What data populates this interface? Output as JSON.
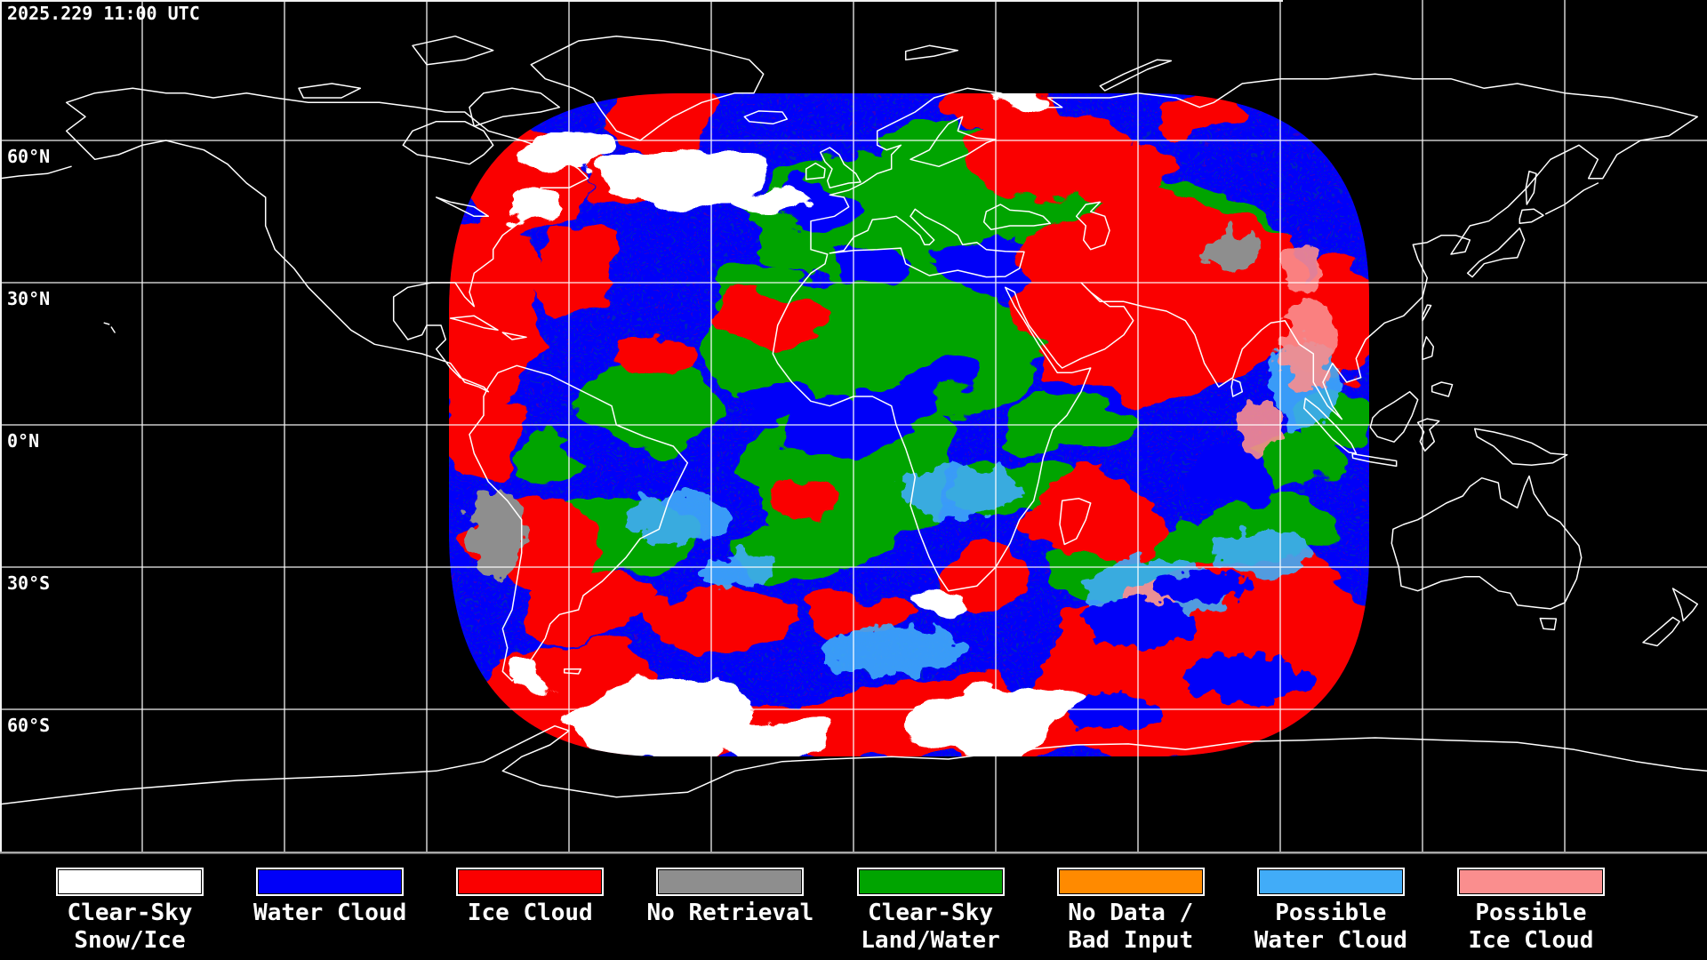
{
  "header": {
    "timestamp": "2025.229 11:00 UTC"
  },
  "map": {
    "latitude_labels": [
      {
        "text": "60°N"
      },
      {
        "text": "30°N"
      },
      {
        "text": "0°N"
      },
      {
        "text": "30°S"
      },
      {
        "text": "60°S"
      }
    ],
    "graticule_color": "#FFFFFF",
    "coastline_color": "#FFFFFF",
    "background_color": "#000000"
  },
  "legend": {
    "items": [
      {
        "name": "clear-sky-snow-ice",
        "color": "#FFFFFF",
        "line1": "Clear-Sky",
        "line2": "Snow/Ice"
      },
      {
        "name": "water-cloud",
        "color": "#0000F8",
        "line1": "Water Cloud",
        "line2": ""
      },
      {
        "name": "ice-cloud",
        "color": "#FA0000",
        "line1": "Ice Cloud",
        "line2": ""
      },
      {
        "name": "no-retrieval",
        "color": "#8E8E8E",
        "line1": "No Retrieval",
        "line2": ""
      },
      {
        "name": "clear-sky-land-water",
        "color": "#00A400",
        "line1": "Clear-Sky",
        "line2": "Land/Water"
      },
      {
        "name": "no-data-bad-input",
        "color": "#FF8A00",
        "line1": "No Data /",
        "line2": "Bad Input"
      },
      {
        "name": "possible-water-cloud",
        "color": "#41ACF8",
        "line1": "Possible",
        "line2": "Water Cloud"
      },
      {
        "name": "possible-ice-cloud",
        "color": "#FA8E8E",
        "line1": "Possible",
        "line2": "Ice Cloud"
      }
    ]
  }
}
